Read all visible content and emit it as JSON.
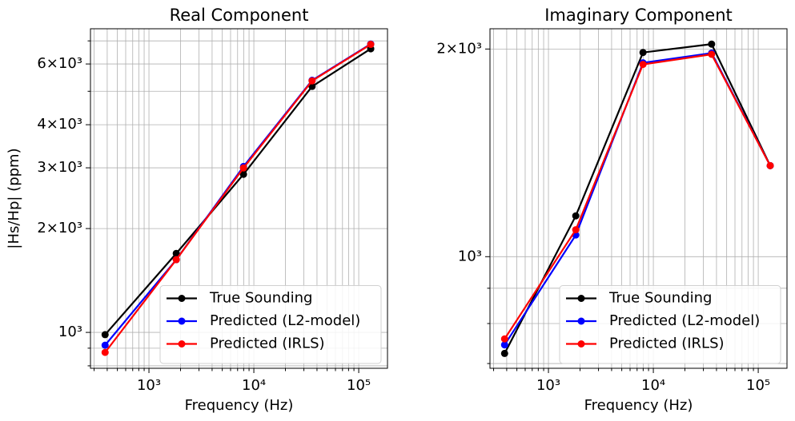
{
  "chart_data": [
    {
      "type": "line",
      "title": "Real Component",
      "x_label": "Frequency (Hz)",
      "y_label": "|Hs/Hp| (ppm)",
      "x": [
        382,
        1822,
        7970,
        35920,
        130100
      ],
      "series": [
        {
          "name": "True Sounding",
          "color": "#000000",
          "values": [
            985,
            1694,
            2872,
            5165,
            6640
          ]
        },
        {
          "name": "Predicted (L2-model)",
          "color": "#0000ff",
          "values": [
            918,
            1625,
            3027,
            5380,
            6855
          ]
        },
        {
          "name": "Predicted (IRLS)",
          "color": "#ff0000",
          "values": [
            875,
            1625,
            2998,
            5360,
            6840
          ]
        }
      ],
      "xlim": [
        277,
        188000
      ],
      "ylim": [
        787,
        7590
      ],
      "log_x": true,
      "log_y": true,
      "grid": true,
      "legend": "lower right",
      "xticks": [
        {
          "value": 1000,
          "label": "10³"
        },
        {
          "value": 10000,
          "label": "10⁴"
        },
        {
          "value": 100000,
          "label": "10⁵"
        }
      ],
      "xminorticks": [
        300,
        400,
        500,
        600,
        700,
        800,
        900,
        2000,
        3000,
        4000,
        5000,
        6000,
        7000,
        8000,
        9000,
        20000,
        30000,
        40000,
        50000,
        60000,
        70000,
        80000,
        90000
      ],
      "yticks": [
        {
          "value": 1000,
          "label": "10³"
        },
        {
          "value": 2000,
          "label": "2×10³"
        },
        {
          "value": 3000,
          "label": "3×10³"
        },
        {
          "value": 4000,
          "label": "4×10³"
        },
        {
          "value": 6000,
          "label": "6×10³"
        }
      ],
      "yminorticks": [
        800,
        900,
        5000,
        7000
      ]
    },
    {
      "type": "line",
      "title": "Imaginary Component",
      "x_label": "Frequency (Hz)",
      "x": [
        382,
        1822,
        7970,
        35920,
        130100
      ],
      "series": [
        {
          "name": "True Sounding",
          "color": "#000000",
          "values": [
            724,
            1146,
            1977,
            2033,
            1355
          ]
        },
        {
          "name": "Predicted (L2-model)",
          "color": "#0000ff",
          "values": [
            745,
            1075,
            1910,
            1973,
            1355
          ]
        },
        {
          "name": "Predicted (IRLS)",
          "color": "#ff0000",
          "values": [
            760,
            1094,
            1900,
            1965,
            1355
          ]
        }
      ],
      "xlim": [
        277,
        188000
      ],
      "ylim": [
        689,
        2140
      ],
      "log_x": true,
      "log_y": true,
      "grid": true,
      "legend": "lower right",
      "xticks": [
        {
          "value": 1000,
          "label": "10³"
        },
        {
          "value": 10000,
          "label": "10⁴"
        },
        {
          "value": 100000,
          "label": "10⁵"
        }
      ],
      "xminorticks": [
        300,
        400,
        500,
        600,
        700,
        800,
        900,
        2000,
        3000,
        4000,
        5000,
        6000,
        7000,
        8000,
        9000,
        20000,
        30000,
        40000,
        50000,
        60000,
        70000,
        80000,
        90000
      ],
      "yticks": [
        {
          "value": 1000,
          "label": "10³"
        },
        {
          "value": 2000,
          "label": "2×10³"
        }
      ],
      "yminorticks": [
        700,
        800,
        900
      ]
    }
  ]
}
